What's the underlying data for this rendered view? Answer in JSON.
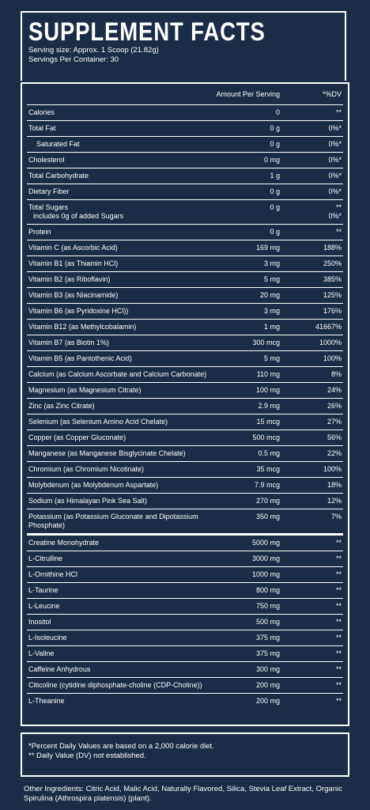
{
  "header": {
    "title": "SUPPLEMENT FACTS",
    "serving_size": "Serving size: Approx. 1 Scoop (21.82g)",
    "servings_per_container": "Servings Per Container: 30"
  },
  "table": {
    "amount_header": "Amount Per Serving",
    "dv_header": "*%DV",
    "sections": [
      {
        "rows": [
          {
            "name": "Calories",
            "amount": "0",
            "dv": "**"
          },
          {
            "name": "Total Fat",
            "amount": "0 g",
            "dv": "0%*",
            "subrows": [
              {
                "name": "Saturated Fat",
                "amount": "0 g",
                "dv": "0%*"
              }
            ]
          },
          {
            "name": "Cholesterol",
            "amount": "0 mg",
            "dv": "0%*"
          },
          {
            "name": "Total Carbohydrate",
            "amount": "1 g",
            "dv": "0%*"
          },
          {
            "name": "Dietary Fiber",
            "amount": "0 g",
            "dv": "0%*"
          },
          {
            "name": "Total Sugars",
            "amount": "0 g",
            "dv": "**",
            "note": "includes 0g of added Sugars",
            "note_dv": "0%*"
          },
          {
            "name": "Protein",
            "amount": "0 g",
            "dv": "**"
          },
          {
            "name": "Vitamin C (as Ascorbic Acid)",
            "amount": "169 mg",
            "dv": "188%"
          },
          {
            "name": "Vitamin B1 (as Thiamin HCl)",
            "amount": "3 mg",
            "dv": "250%"
          },
          {
            "name": "Vitamin B2 (as Riboflavin)",
            "amount": "5 mg",
            "dv": "385%"
          },
          {
            "name": "Vitamin B3 (as Niacinamide)",
            "amount": "20 mg",
            "dv": "125%"
          },
          {
            "name": "Vitamin B6 (as Pyridoxine HCl))",
            "amount": "3 mg",
            "dv": "176%"
          },
          {
            "name": "Vitamin B12 (as Methylcobalamin)",
            "amount": "1 mg",
            "dv": "41667%"
          },
          {
            "name": "Vitamin B7 (as Biotin 1%)",
            "amount": "300 mcg",
            "dv": "1000%"
          },
          {
            "name": "Vitamin B5 (as Pantothenic Acid)",
            "amount": "5 mg",
            "dv": "100%"
          },
          {
            "name": "Calcium (as Calcium Ascorbate and Calcium Carbonate)",
            "amount": "110 mg",
            "dv": "8%"
          },
          {
            "name": "Magnesium (as Magnesium Citrate)",
            "amount": "100 mg",
            "dv": "24%"
          },
          {
            "name": "Zinc (as Zinc Citrate)",
            "amount": "2.9 mg",
            "dv": "26%"
          },
          {
            "name": "Selenium (as Selenium Amino Acid Chelate)",
            "amount": "15 mcg",
            "dv": "27%"
          },
          {
            "name": "Copper (as Copper Gluconate)",
            "amount": "500 mcg",
            "dv": "56%"
          },
          {
            "name": "Manganese (as Manganese Bisglycinate Chelate)",
            "amount": "0.5 mg",
            "dv": "22%"
          },
          {
            "name": "Chromium (as Chromium Nicotinate)",
            "amount": "35 mcg",
            "dv": "100%"
          },
          {
            "name": "Molybdenum (as Molybdenum Aspartate)",
            "amount": "7.9 mcg",
            "dv": "18%"
          },
          {
            "name": "Sodium (as Himalayan Pink Sea Salt)",
            "amount": "270 mg",
            "dv": "12%"
          },
          {
            "name": "Potassium (as Potassium Gluconate and Dipotassium Phosphate)",
            "amount": "350 mg",
            "dv": "7%"
          }
        ]
      },
      {
        "rows": [
          {
            "name": "Creatine Monohydrate",
            "amount": "5000 mg",
            "dv": "**"
          },
          {
            "name": "L-Citrulline",
            "amount": "3000 mg",
            "dv": "**"
          },
          {
            "name": "L-Ornithine HCl",
            "amount": "1000 mg",
            "dv": "**"
          },
          {
            "name": "L-Taurine",
            "amount": "800 mg",
            "dv": "**"
          },
          {
            "name": "L-Leucine",
            "amount": "750 mg",
            "dv": "**"
          },
          {
            "name": "Inositol",
            "amount": "500 mg",
            "dv": "**"
          },
          {
            "name": "L-Isoleucine",
            "amount": "375 mg",
            "dv": "**"
          },
          {
            "name": "L-Valine",
            "amount": "375 mg",
            "dv": "**"
          },
          {
            "name": "Caffeine Anhydrous",
            "amount": "300 mg",
            "dv": "**"
          },
          {
            "name": "Citicoline (cytidine diphosphate-choline (CDP-Choline))",
            "amount": "200 mg",
            "dv": "**"
          },
          {
            "name": "L-Theanine",
            "amount": "200 mg",
            "dv": "**"
          }
        ]
      }
    ]
  },
  "footnotes": [
    "*Percent Daily Values are based on a 2,000 calorie diet.",
    "** Daily Value (DV) not established."
  ],
  "other_ingredients": "Other Ingredients: Citric Acid, Malic Acid, Naturally Flavored, Silica, Stevia Leaf Extract, Organic Spirulina (Athrospira platensis) (plant)."
}
